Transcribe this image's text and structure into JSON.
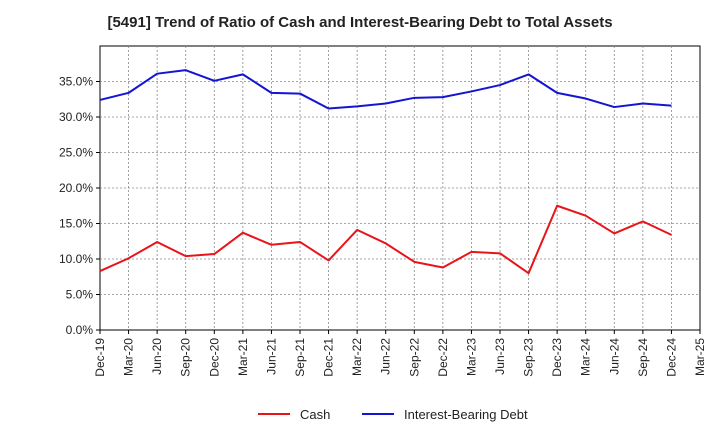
{
  "chart_data": {
    "type": "line",
    "title": "[5491]  Trend of Ratio of Cash and Interest-Bearing Debt to Total Assets",
    "xlabel": "",
    "ylabel": "",
    "ylim": [
      0,
      0.4
    ],
    "yticks": [
      0,
      0.05,
      0.1,
      0.15,
      0.2,
      0.25,
      0.3,
      0.35
    ],
    "ytick_labels": [
      "0.0%",
      "5.0%",
      "10.0%",
      "15.0%",
      "20.0%",
      "25.0%",
      "30.0%",
      "35.0%"
    ],
    "x_tick_labels": [
      "Dec-19",
      "Mar-20",
      "Jun-20",
      "Sep-20",
      "Dec-20",
      "Mar-21",
      "Jun-21",
      "Sep-21",
      "Dec-21",
      "Mar-22",
      "Jun-22",
      "Sep-22",
      "Dec-22",
      "Mar-23",
      "Jun-23",
      "Sep-23",
      "Dec-23",
      "Mar-24",
      "Jun-24",
      "Sep-24",
      "Dec-24",
      "Mar-25"
    ],
    "grid": true,
    "legend_position": "bottom",
    "series": [
      {
        "name": "Cash",
        "color": "#e8141a",
        "x": [
          "Dec-19",
          "Mar-20",
          "Jun-20",
          "Sep-20",
          "Dec-20",
          "Mar-21",
          "Jun-21",
          "Sep-21",
          "Dec-21",
          "Mar-22",
          "Jun-22",
          "Sep-22",
          "Dec-22",
          "Mar-23",
          "Jun-23",
          "Sep-23",
          "Dec-23",
          "Mar-24",
          "Jun-24",
          "Sep-24",
          "Dec-24"
        ],
        "values": [
          0.083,
          0.101,
          0.124,
          0.104,
          0.107,
          0.137,
          0.12,
          0.124,
          0.098,
          0.141,
          0.122,
          0.096,
          0.088,
          0.11,
          0.108,
          0.08,
          0.175,
          0.161,
          0.136,
          0.153,
          0.134
        ]
      },
      {
        "name": "Interest-Bearing Debt",
        "color": "#1414d2",
        "x": [
          "Dec-19",
          "Mar-20",
          "Jun-20",
          "Sep-20",
          "Dec-20",
          "Mar-21",
          "Jun-21",
          "Sep-21",
          "Dec-21",
          "Mar-22",
          "Jun-22",
          "Sep-22",
          "Dec-22",
          "Mar-23",
          "Jun-23",
          "Sep-23",
          "Dec-23",
          "Mar-24",
          "Jun-24",
          "Sep-24",
          "Dec-24"
        ],
        "values": [
          0.324,
          0.334,
          0.361,
          0.366,
          0.351,
          0.36,
          0.334,
          0.333,
          0.312,
          0.315,
          0.319,
          0.327,
          0.328,
          0.336,
          0.345,
          0.36,
          0.334,
          0.326,
          0.314,
          0.319,
          0.316
        ]
      }
    ]
  }
}
